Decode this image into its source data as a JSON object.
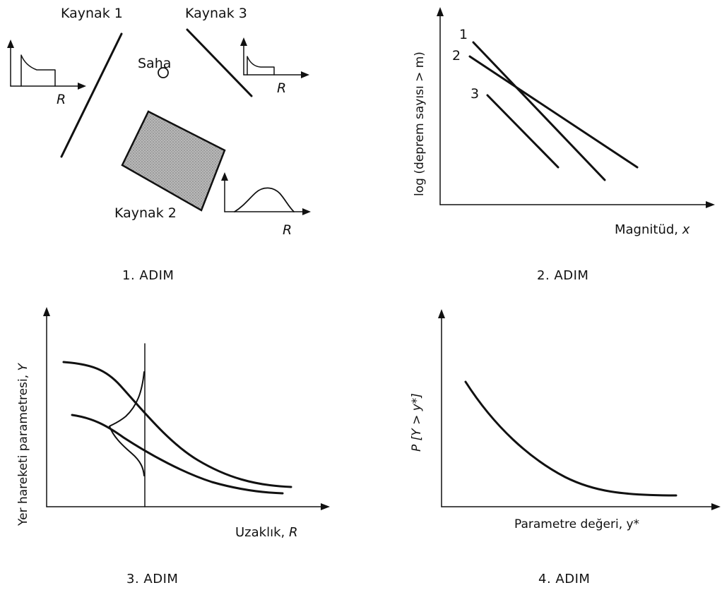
{
  "step1": {
    "source1": "Kaynak 1",
    "source2": "Kaynak 2",
    "source3": "Kaynak 3",
    "site": "Saha",
    "r_label": "R",
    "caption": "1. ADIM"
  },
  "step2": {
    "ylabel": "log (deprem sayısı > m)",
    "xlabel_prefix": "Magnitüd, ",
    "xlabel_var": "x",
    "line1": "1",
    "line2": "2",
    "line3": "3",
    "caption": "2. ADIM"
  },
  "step3": {
    "ylabel_prefix": "Yer hareketi parametresi, ",
    "ylabel_var": "Y",
    "xlabel_prefix": "Uzaklık, ",
    "xlabel_var": "R",
    "caption": "3. ADIM"
  },
  "step4": {
    "ylabel": "P [Y > y*]",
    "xlabel": "Parametre değeri, y*",
    "caption": "4. ADIM"
  }
}
